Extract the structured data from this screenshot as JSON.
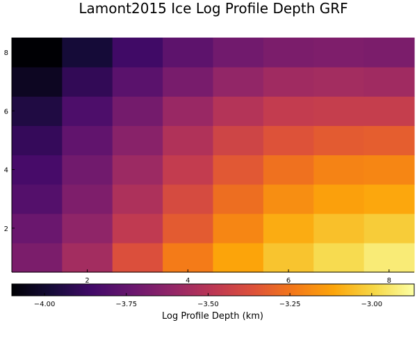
{
  "chart_data": {
    "type": "heatmap",
    "title": "Lamont2015 Ice Log Profile Depth GRF",
    "xlabel": "",
    "ylabel": "",
    "colorbar_label": "Log Profile Depth (km)",
    "colormap": "inferno",
    "x": [
      1,
      2,
      3,
      4,
      5,
      6,
      7,
      8
    ],
    "y": [
      1,
      2,
      3,
      4,
      5,
      6,
      7,
      8
    ],
    "xlim": [
      0.5,
      8.5
    ],
    "ylim": [
      0.5,
      8.5
    ],
    "x_ticks": [
      2,
      4,
      6,
      8
    ],
    "y_ticks": [
      2,
      4,
      6,
      8
    ],
    "clim": [
      -4.1,
      -2.87
    ],
    "colorbar_ticks": [
      -4.0,
      -3.75,
      -3.5,
      -3.25,
      -3.0
    ],
    "colorbar_tick_labels": [
      "−4.00",
      "−3.75",
      "−3.50",
      "−3.25",
      "−3.00"
    ],
    "grid": false,
    "z_rows_bottom_to_top": [
      [
        -3.68,
        -3.56,
        -3.37,
        -3.23,
        -3.12,
        -3.04,
        -2.98,
        -2.93
      ],
      [
        -3.73,
        -3.62,
        -3.47,
        -3.33,
        -3.2,
        -3.1,
        -3.05,
        -3.02
      ],
      [
        -3.8,
        -3.67,
        -3.53,
        -3.39,
        -3.27,
        -3.18,
        -3.13,
        -3.11
      ],
      [
        -3.84,
        -3.71,
        -3.58,
        -3.46,
        -3.34,
        -3.26,
        -3.21,
        -3.2
      ],
      [
        -3.89,
        -3.76,
        -3.64,
        -3.52,
        -3.42,
        -3.36,
        -3.33,
        -3.32
      ],
      [
        -3.95,
        -3.82,
        -3.7,
        -3.59,
        -3.51,
        -3.46,
        -3.45,
        -3.45
      ],
      [
        -4.03,
        -3.9,
        -3.78,
        -3.69,
        -3.61,
        -3.57,
        -3.56,
        -3.57
      ],
      [
        -4.1,
        -3.98,
        -3.86,
        -3.77,
        -3.71,
        -3.68,
        -3.67,
        -3.68
      ]
    ]
  }
}
